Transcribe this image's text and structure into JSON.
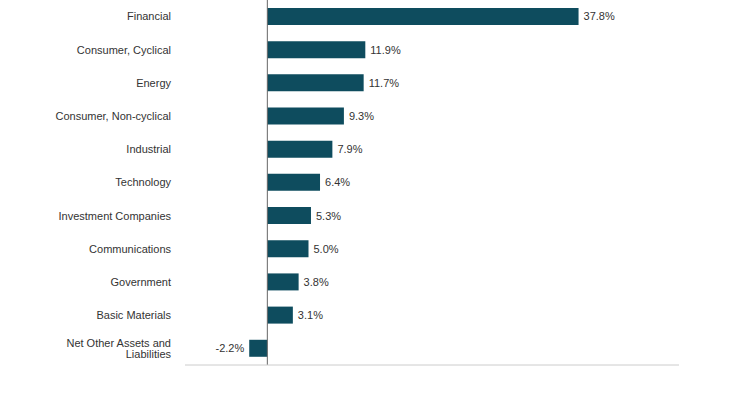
{
  "chart_data": {
    "type": "bar",
    "orientation": "horizontal",
    "categories": [
      "Financial",
      "Consumer, Cyclical",
      "Energy",
      "Consumer, Non-cyclical",
      "Industrial",
      "Technology",
      "Investment Companies",
      "Communications",
      "Government",
      "Basic Materials",
      "Net Other Assets and Liabilities"
    ],
    "values": [
      37.8,
      11.9,
      11.7,
      9.3,
      7.9,
      6.4,
      5.3,
      5.0,
      3.8,
      3.1,
      -2.2
    ],
    "value_labels": [
      "37.8%",
      "11.9%",
      "11.7%",
      "9.3%",
      "7.9%",
      "6.4%",
      "5.3%",
      "5.0%",
      "3.8%",
      "3.1%",
      "-2.2%"
    ],
    "color": "#0e4c5e",
    "xlim": [
      -10,
      50
    ],
    "xticks": [],
    "data_labels": true,
    "tick_labels": "y",
    "grid": false
  }
}
